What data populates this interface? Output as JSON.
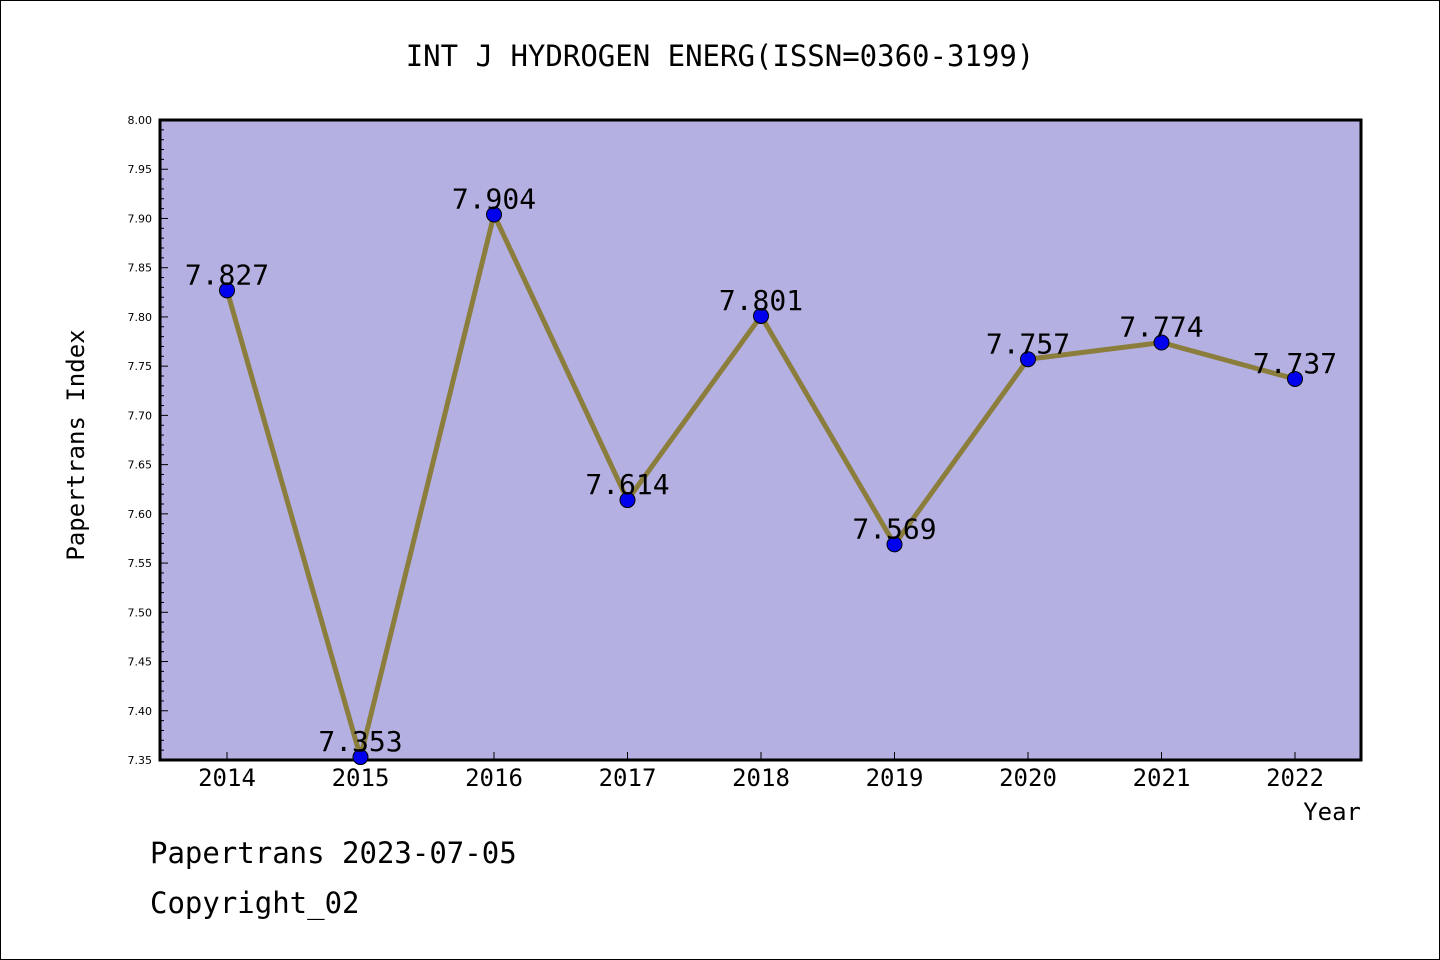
{
  "chart_data": {
    "type": "line",
    "title": "INT J HYDROGEN ENERG(ISSN=0360-3199)",
    "xlabel": "Year",
    "ylabel": "Papertrans Index",
    "categories": [
      "2014",
      "2015",
      "2016",
      "2017",
      "2018",
      "2019",
      "2020",
      "2021",
      "2022"
    ],
    "series": [
      {
        "values": [
          7.827,
          7.353,
          7.904,
          7.614,
          7.801,
          7.569,
          7.757,
          7.774,
          7.737
        ],
        "labels": [
          "7.827",
          "7.353",
          "7.904",
          "7.614",
          "7.801",
          "7.569",
          "7.757",
          "7.774",
          "7.737"
        ]
      }
    ],
    "ylim": [
      7.35,
      8.0
    ],
    "yticks": [
      "7.35",
      "7.40",
      "7.45",
      "7.50",
      "7.55",
      "7.60",
      "7.65",
      "7.70",
      "7.75",
      "7.80",
      "7.85",
      "7.90",
      "7.95",
      "8.00"
    ],
    "grid": false,
    "colors": {
      "plot_background": "#b5b0e2",
      "line": "#8b7d3c",
      "marker": "#0000ee"
    }
  },
  "footer": {
    "source": "Papertrans 2023-07-05",
    "copyright": "Copyright_02"
  }
}
